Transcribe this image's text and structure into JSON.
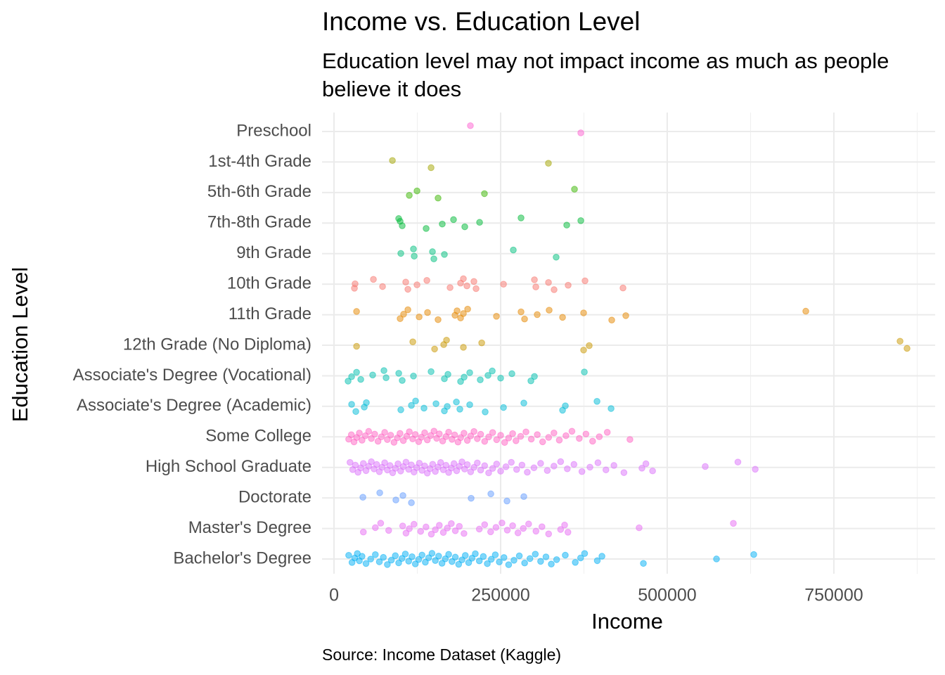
{
  "chart_data": {
    "type": "strip",
    "title": "Income vs. Education Level",
    "subtitle": "Education level may not impact income as much as people believe it does",
    "caption": "Source: Income Dataset (Kaggle)",
    "x_label": "Income",
    "y_label": "Education Level",
    "xlim": [
      -18000,
      902000
    ],
    "xticks": [
      0,
      250000,
      500000,
      750000
    ],
    "xticks_minor": [
      125000,
      375000,
      625000,
      875000
    ],
    "grid": true,
    "opacity": 0.5,
    "series": [
      {
        "name": "Preschool",
        "color": "#FD61D1",
        "values": [
          204600,
          370300
        ]
      },
      {
        "name": "1st-4th Grade",
        "color": "#A3A500",
        "values": [
          87600,
          145600,
          321700
        ]
      },
      {
        "name": "5th-6th Grade",
        "color": "#39B600",
        "values": [
          112900,
          124500,
          156100,
          225700,
          360800
        ]
      },
      {
        "name": "7th-8th Grade",
        "color": "#00BA38",
        "values": [
          97000,
          102300,
          99200,
          138200,
          162400,
          179300,
          196200,
          218400,
          280600,
          349200,
          370300
        ]
      },
      {
        "name": "9th Grade",
        "color": "#00BF7D",
        "values": [
          100200,
          119200,
          120300,
          147700,
          149800,
          165600,
          269000,
          333300
        ]
      },
      {
        "name": "10th Grade",
        "color": "#F8766D",
        "values": [
          30600,
          31600,
          59100,
          72800,
          107600,
          110800,
          124500,
          139300,
          174100,
          189900,
          194100,
          199400,
          209900,
          213100,
          254300,
          300700,
          302800,
          321800,
          330200,
          351300,
          376600,
          433600
        ]
      },
      {
        "name": "11th Grade",
        "color": "#E58700",
        "values": [
          33800,
          99200,
          104400,
          110800,
          127700,
          140300,
          156100,
          181500,
          184600,
          189900,
          194100,
          200500,
          243700,
          280600,
          285900,
          304900,
          322800,
          342900,
          374500,
          416700,
          437800,
          707900
        ]
      },
      {
        "name": "12th Grade (No Diploma)",
        "color": "#C99800",
        "values": [
          33800,
          118200,
          150900,
          164600,
          168800,
          194100,
          221600,
          374500,
          382900,
          849300,
          859800
        ]
      },
      {
        "name": "Associate's Degree (Vocational)",
        "color": "#00C0AF",
        "values": [
          21100,
          26400,
          33800,
          40100,
          58000,
          74900,
          78100,
          97100,
          102300,
          119200,
          145600,
          165600,
          170900,
          189900,
          195200,
          203600,
          219400,
          231000,
          237400,
          250000,
          266900,
          295400,
          300700,
          375600
        ]
      },
      {
        "name": "Associate's Degree (Academic)",
        "color": "#00BCD8",
        "values": [
          26400,
          32700,
          45400,
          48500,
          100200,
          116100,
          122400,
          135000,
          153000,
          165600,
          169900,
          183600,
          188800,
          203600,
          226800,
          254300,
          284800,
          342900,
          347100,
          394600,
          415700
        ]
      },
      {
        "name": "Some College",
        "color": "#FF61C3",
        "values": [
          22000,
          26000,
          30000,
          34000,
          38000,
          42000,
          47000,
          52000,
          56000,
          61000,
          66000,
          71000,
          76000,
          80000,
          85000,
          90000,
          95000,
          99000,
          104000,
          109000,
          113000,
          118000,
          122000,
          127000,
          131000,
          136000,
          140000,
          145000,
          150000,
          154000,
          158000,
          163000,
          168000,
          172000,
          177000,
          181000,
          186000,
          190000,
          195000,
          200000,
          205000,
          210000,
          215000,
          220000,
          226000,
          232000,
          238000,
          244000,
          250000,
          256000,
          262000,
          268000,
          273000,
          280000,
          288000,
          296000,
          305000,
          313000,
          322000,
          330000,
          338000,
          348000,
          357000,
          368000,
          378000,
          388000,
          398000,
          410000,
          444000
        ]
      },
      {
        "name": "High School Graduate",
        "color": "#DB72FB",
        "values": [
          24000,
          28000,
          32000,
          36000,
          40000,
          44000,
          48000,
          52000,
          56000,
          60000,
          64000,
          68000,
          72000,
          76000,
          80000,
          84000,
          88000,
          92000,
          96000,
          100000,
          104000,
          108000,
          112000,
          116000,
          120000,
          124000,
          128000,
          132000,
          136000,
          140000,
          144000,
          148000,
          152000,
          156000,
          160000,
          164000,
          168000,
          172000,
          176000,
          180000,
          184000,
          188000,
          192000,
          196000,
          200000,
          205000,
          210000,
          215000,
          220000,
          226000,
          232000,
          238000,
          244000,
          250000,
          258000,
          266000,
          274000,
          282000,
          290000,
          300000,
          310000,
          320000,
          330000,
          340000,
          350000,
          360000,
          372000,
          384000,
          396000,
          408000,
          420000,
          435000,
          462000,
          468000,
          478000,
          557000,
          606000,
          632000
        ]
      },
      {
        "name": "Doctorate",
        "color": "#619CFF",
        "values": [
          43300,
          68600,
          92800,
          103400,
          116100,
          205700,
          235300,
          259500,
          284800
        ]
      },
      {
        "name": "Master's Degree",
        "color": "#E76BF3",
        "values": [
          44000,
          62000,
          70000,
          82000,
          103000,
          108000,
          113000,
          120000,
          130000,
          138000,
          146000,
          152000,
          158000,
          164000,
          170000,
          176000,
          182000,
          188000,
          195000,
          218000,
          226000,
          235000,
          243000,
          252000,
          260000,
          268000,
          276000,
          284000,
          292000,
          303000,
          312000,
          322000,
          340000,
          346000,
          351000,
          457800,
          599200
        ]
      },
      {
        "name": "Bachelor's Degree",
        "color": "#00B0F6",
        "values": [
          22000,
          27000,
          31000,
          35000,
          38000,
          42000,
          48000,
          55000,
          62000,
          68000,
          74000,
          80000,
          86000,
          92000,
          97000,
          102000,
          107000,
          112000,
          117000,
          122000,
          127000,
          132000,
          137000,
          142000,
          147000,
          152000,
          157000,
          162000,
          167000,
          172000,
          177000,
          182000,
          187000,
          192000,
          197000,
          202000,
          207000,
          212000,
          218000,
          224000,
          230000,
          236000,
          242000,
          248000,
          255000,
          262000,
          270000,
          278000,
          286000,
          294000,
          302000,
          310000,
          318000,
          326000,
          334000,
          347000,
          362000,
          370000,
          376000,
          395000,
          402000,
          464200,
          573900,
          629800
        ]
      }
    ]
  }
}
